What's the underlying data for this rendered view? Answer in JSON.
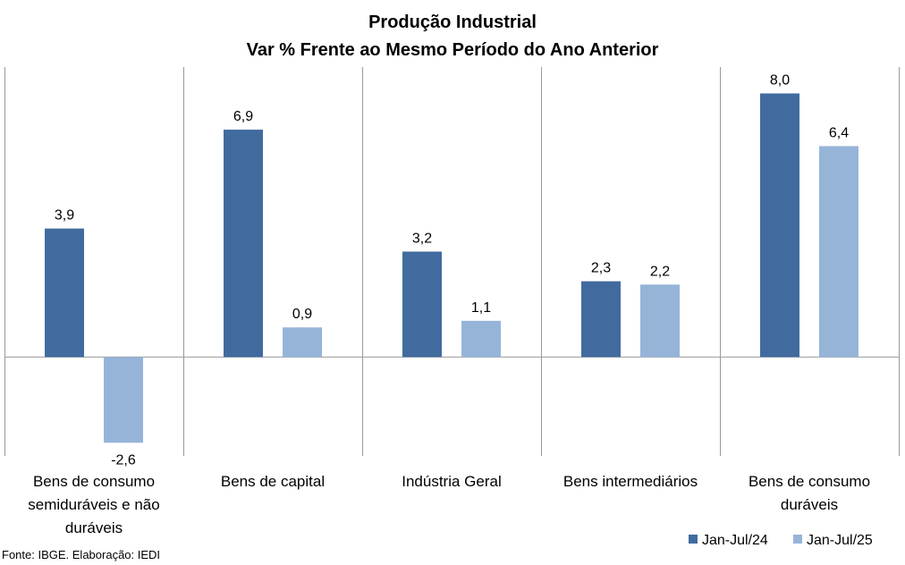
{
  "chart_data": {
    "type": "bar",
    "title": "Produção Industrial",
    "subtitle": "Var % Frente ao Mesmo Período do Ano Anterior",
    "categories": [
      [
        "Bens de consumo",
        "semiduráveis e não",
        "duráveis"
      ],
      [
        "Bens de capital"
      ],
      [
        "Indústria Geral"
      ],
      [
        "Bens intermediários"
      ],
      [
        "Bens de consumo",
        "duráveis"
      ]
    ],
    "series": [
      {
        "name": "Jan-Jul/24",
        "color": "#416B9F",
        "values": [
          3.9,
          6.9,
          3.2,
          2.3,
          8.0
        ],
        "labels": [
          "3,9",
          "6,9",
          "3,2",
          "2,3",
          "8,0"
        ]
      },
      {
        "name": "Jan-Jul/25",
        "color": "#96B4D8",
        "values": [
          -2.6,
          0.9,
          1.1,
          2.2,
          6.4
        ],
        "labels": [
          "-2,6",
          "0,9",
          "1,1",
          "2,2",
          "6,4"
        ]
      }
    ],
    "ylim": [
      -3.0,
      8.8
    ],
    "grid": false,
    "category_separators": true,
    "legend": "bottom-right"
  },
  "source": "Fonte: IBGE. Elaboração: IEDI"
}
